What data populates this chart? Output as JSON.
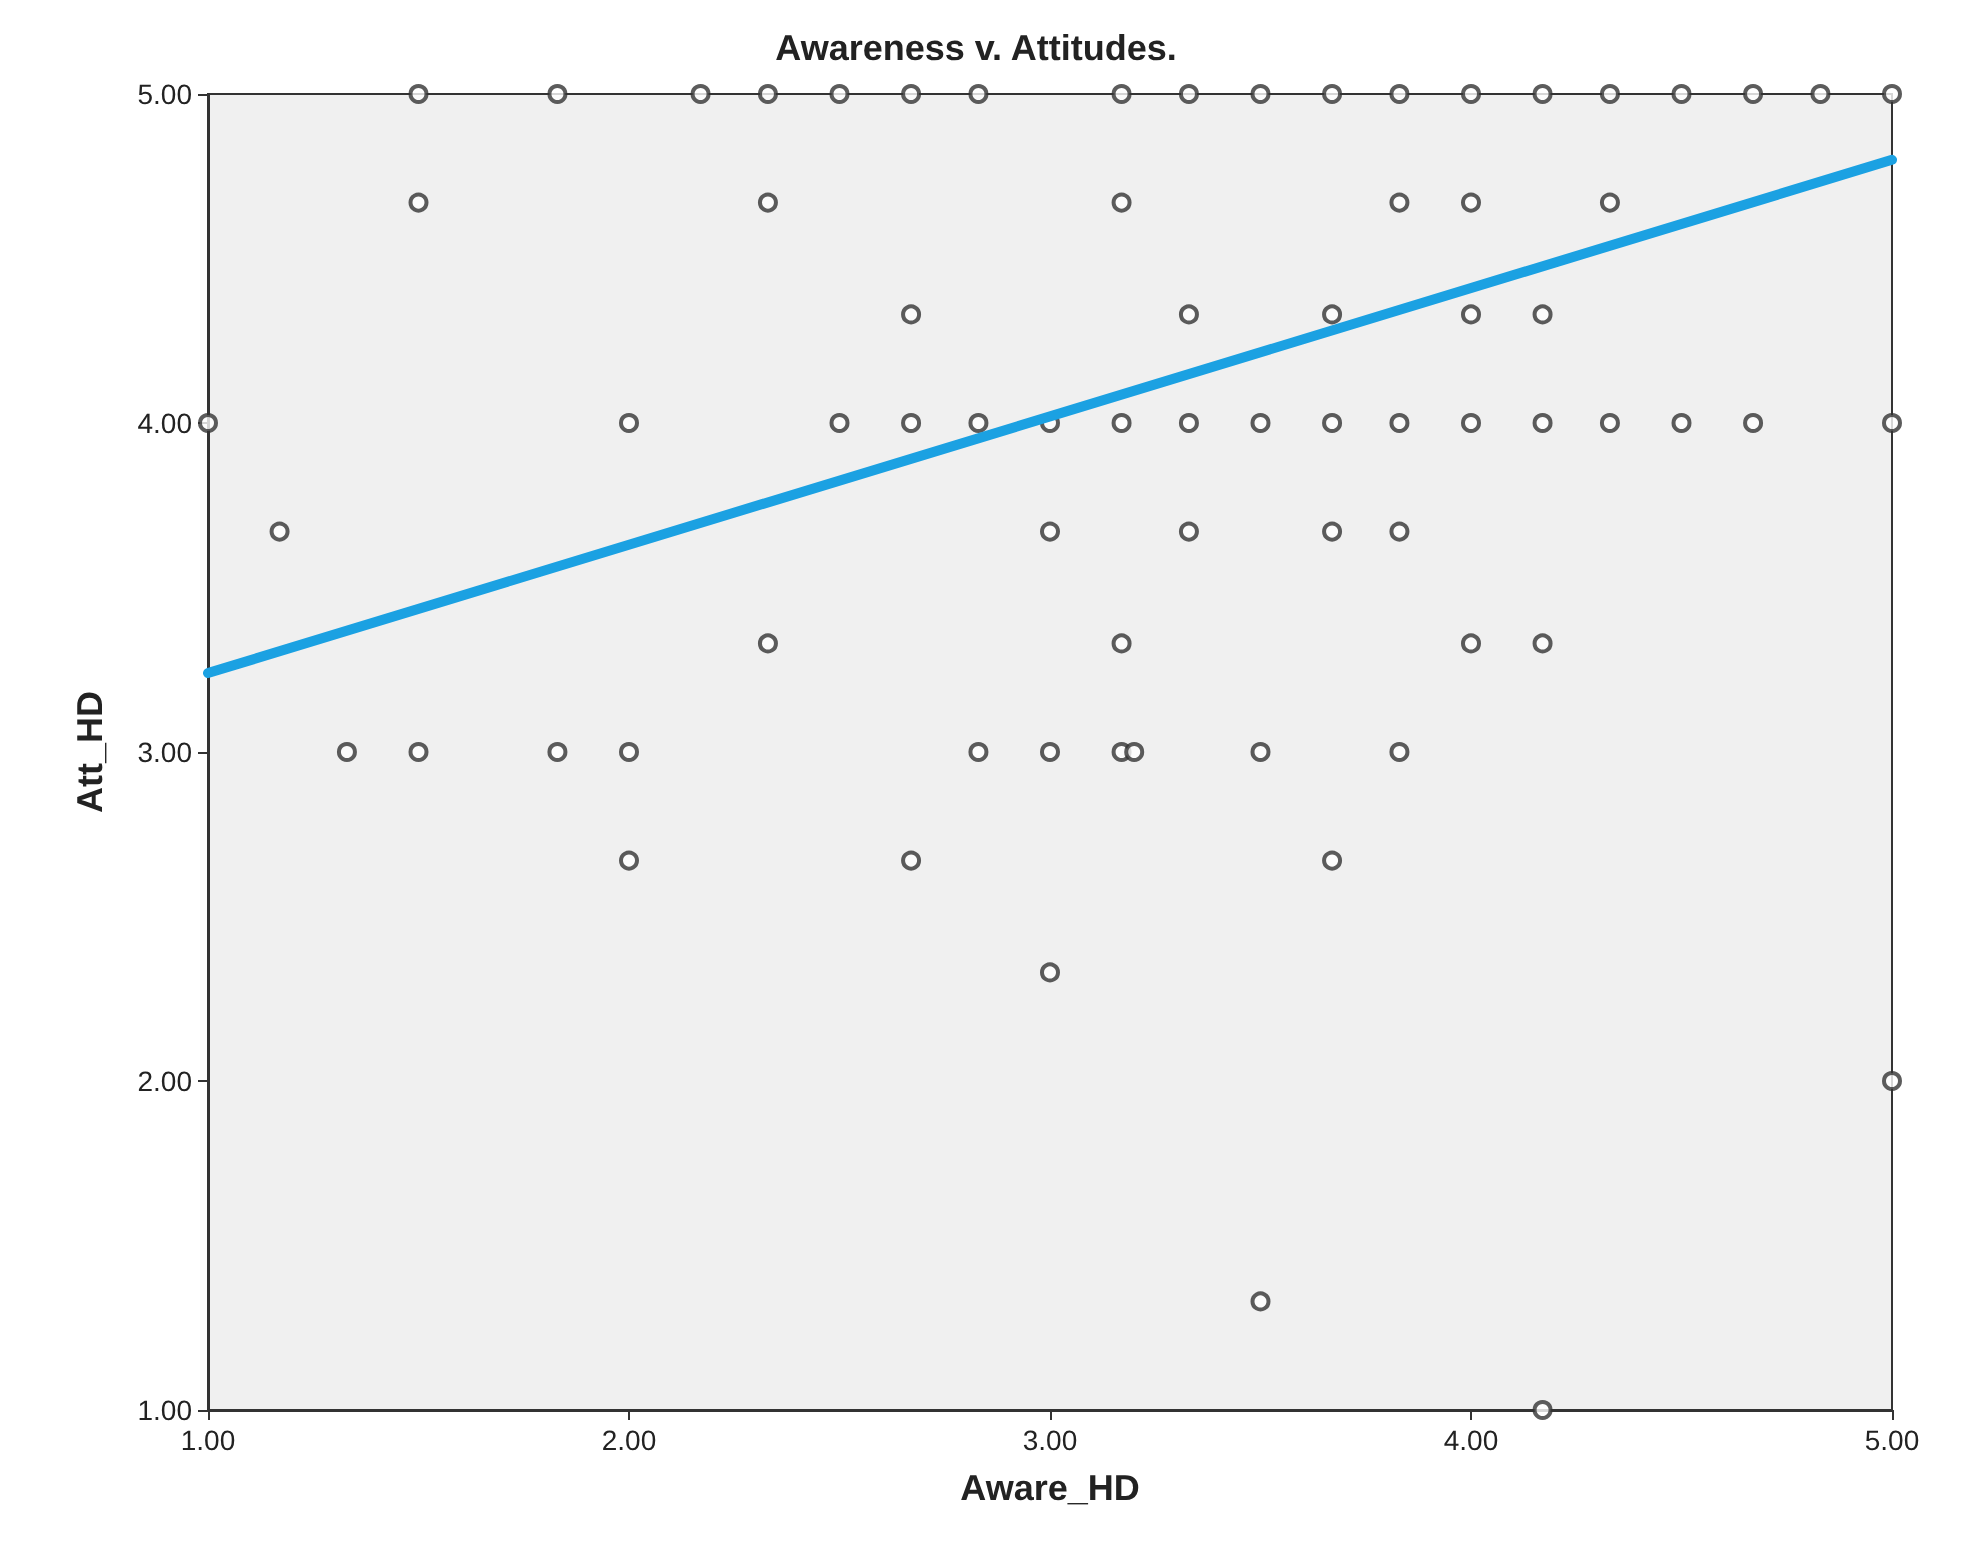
{
  "chart_data": {
    "type": "scatter",
    "title": "Awareness v. Attitudes.",
    "xlabel": "Aware_HD",
    "ylabel": "Att_HD",
    "xlim": [
      1,
      5
    ],
    "ylim": [
      1,
      5
    ],
    "xticks": [
      {
        "value": 1,
        "label": "1.00"
      },
      {
        "value": 2,
        "label": "2.00"
      },
      {
        "value": 3,
        "label": "3.00"
      },
      {
        "value": 4,
        "label": "4.00"
      },
      {
        "value": 5,
        "label": "5.00"
      }
    ],
    "yticks": [
      {
        "value": 1,
        "label": "1.00"
      },
      {
        "value": 2,
        "label": "2.00"
      },
      {
        "value": 3,
        "label": "3.00"
      },
      {
        "value": 4,
        "label": "4.00"
      },
      {
        "value": 5,
        "label": "5.00"
      }
    ],
    "grid": false,
    "marker": "circle",
    "series": [
      {
        "color": "#333333",
        "x": [
          1.5,
          1.83,
          2.17,
          2.33,
          2.5,
          2.67,
          2.83,
          3.17,
          3.33,
          3.5,
          3.67,
          3.83,
          4,
          4.17,
          4.33,
          4.5,
          4.67,
          4.83,
          5,
          1.5,
          2.33,
          3.17,
          3.83,
          4,
          4.33,
          2.67,
          3.33,
          3.67,
          4,
          4.17,
          1,
          2,
          2.5,
          2.67,
          2.83,
          3,
          3.17,
          3.33,
          3.5,
          3.67,
          3.83,
          4,
          4.17,
          4.33,
          4.5,
          4.67,
          5,
          1.17,
          3,
          3.33,
          3.67,
          3.83,
          2.33,
          3.17,
          4,
          4.17,
          1.33,
          1.5,
          1.83,
          2,
          2.83,
          3,
          3.17,
          3.2,
          3.5,
          3.83,
          2,
          2.67,
          3.67,
          3,
          5,
          3.5,
          4.17
        ],
        "values": [
          5,
          5,
          5,
          5,
          5,
          5,
          5,
          5,
          5,
          5,
          5,
          5,
          5,
          5,
          5,
          5,
          5,
          5,
          5,
          4.67,
          4.67,
          4.67,
          4.67,
          4.67,
          4.67,
          4.33,
          4.33,
          4.33,
          4.33,
          4.33,
          4,
          4,
          4,
          4,
          4,
          4,
          4,
          4,
          4,
          4,
          4,
          4,
          4,
          4,
          4,
          4,
          4,
          3.67,
          3.67,
          3.67,
          3.67,
          3.67,
          3.33,
          3.33,
          3.33,
          3.33,
          3,
          3,
          3,
          3,
          3,
          3,
          3,
          3,
          3,
          3,
          2.67,
          2.67,
          2.67,
          2.33,
          2,
          1.33,
          1
        ]
      },
      {
        "type": "line",
        "color": "#1ba1e2",
        "marker": "none",
        "x": [
          1,
          5
        ],
        "values": [
          3.24,
          4.8
        ]
      }
    ]
  }
}
